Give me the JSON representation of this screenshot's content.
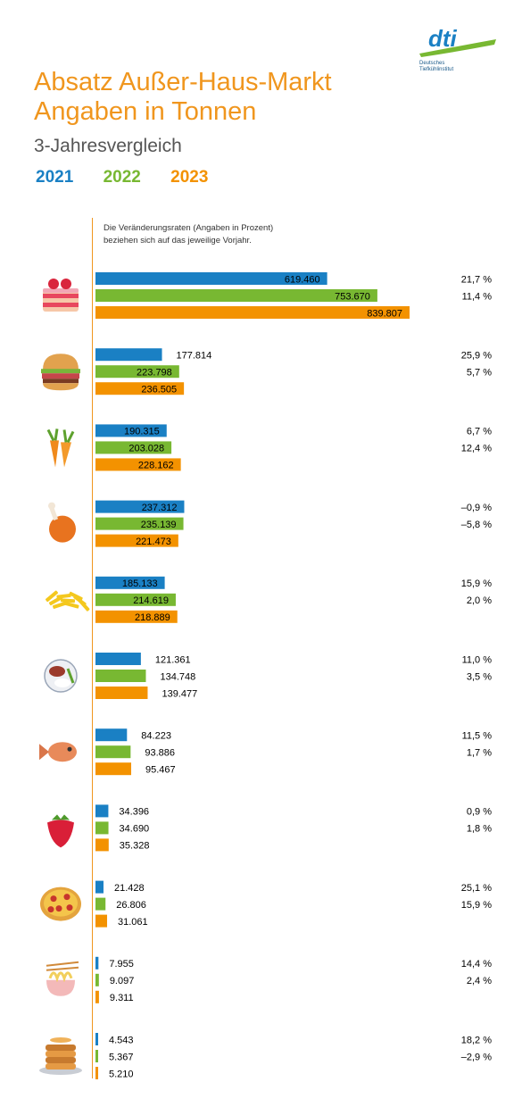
{
  "header": {
    "title_line1": "Absatz Außer-Haus-Markt",
    "title_line2": "Angaben in Tonnen",
    "subtitle": "3-Jahresvergleich",
    "note_line1": "Die Veränderungsraten (Angaben in Prozent)",
    "note_line2": "beziehen sich auf das jeweilige Vorjahr.",
    "logo_text": "dti",
    "logo_caption1": "Deutsches",
    "logo_caption2": "Tiefkühlinstitut"
  },
  "colors": {
    "2021": "#1a80c4",
    "2022": "#78b832",
    "2023": "#f39200",
    "title": "#f0961e"
  },
  "chart_data": {
    "type": "bar",
    "orientation": "horizontal",
    "series": [
      {
        "name": "2021",
        "values": [
          619460,
          177814,
          190315,
          237312,
          185133,
          121361,
          84223,
          34396,
          21428,
          7955,
          4543
        ]
      },
      {
        "name": "2022",
        "values": [
          753670,
          223798,
          203028,
          235139,
          214619,
          134748,
          93886,
          34690,
          26806,
          9097,
          5367
        ]
      },
      {
        "name": "2023",
        "values": [
          839807,
          236505,
          228162,
          221473,
          218889,
          139477,
          95467,
          35328,
          31061,
          9311,
          5210
        ]
      }
    ],
    "labels": [
      [
        "619.460",
        "753.670",
        "839.807"
      ],
      [
        "177.814",
        "223.798",
        "236.505"
      ],
      [
        "190.315",
        "203.028",
        "228.162"
      ],
      [
        "237.312",
        "235.139",
        "221.473"
      ],
      [
        "185.133",
        "214.619",
        "218.889"
      ],
      [
        "121.361",
        "134.748",
        "139.477"
      ],
      [
        "84.223",
        "93.886",
        "95.467"
      ],
      [
        "34.396",
        "34.690",
        "35.328"
      ],
      [
        "21.428",
        "26.806",
        "31.061"
      ],
      [
        "7.955",
        "9.097",
        "9.311"
      ],
      [
        "4.543",
        "5.367",
        "5.210"
      ]
    ],
    "changes": [
      [
        "21,7 %",
        "11,4 %"
      ],
      [
        "25,9 %",
        "5,7 %"
      ],
      [
        "6,7 %",
        "12,4 %"
      ],
      [
        "–0,9 %",
        "–5,8 %"
      ],
      [
        "15,9 %",
        "2,0 %"
      ],
      [
        "11,0 %",
        "3,5 %"
      ],
      [
        "11,5 %",
        "1,7 %"
      ],
      [
        "0,9 %",
        "1,8 %"
      ],
      [
        "25,1 %",
        "15,9 %"
      ],
      [
        "14,4 %",
        "2,4 %"
      ],
      [
        "18,2 %",
        "–2,9 %"
      ]
    ],
    "icons": [
      "cake-icon",
      "burger-icon",
      "carrot-icon",
      "chicken-leg-icon",
      "fries-icon",
      "meat-plate-icon",
      "fish-icon",
      "strawberry-icon",
      "pizza-icon",
      "noodles-icon",
      "pancakes-icon"
    ]
  }
}
